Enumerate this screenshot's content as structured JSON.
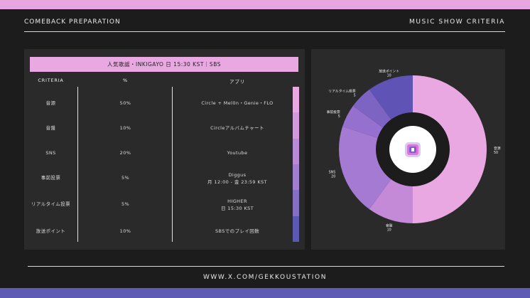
{
  "header": {
    "left": "COMEBACK PREPARATION",
    "right": "MUSIC SHOW CRITERIA"
  },
  "footer": {
    "url": "WWW.X.COM/GEKKOUSTATION"
  },
  "table": {
    "title": "人気歌謡・INKIGAYO 日 15:30 KST｜SBS",
    "columns": [
      "CRITERIA",
      "%",
      "アプリ"
    ],
    "rows": [
      {
        "criteria": "音源",
        "pct": "50%",
        "app": [
          "Circle + Mel0n・Genie・FLO"
        ]
      },
      {
        "criteria": "音盤",
        "pct": "10%",
        "app": [
          "Circleアルバムチャート"
        ]
      },
      {
        "criteria": "SNS",
        "pct": "20%",
        "app": [
          "Youtube"
        ]
      },
      {
        "criteria": "事前投票",
        "pct": "5%",
        "app": [
          "Diggus",
          "月 12:00 - 金 23:59 KST"
        ]
      },
      {
        "criteria": "リアルタイム投票",
        "pct": "5%",
        "app": [
          "HIGHER",
          "日 15:30 KST"
        ]
      },
      {
        "criteria": "放送ポイント",
        "pct": "10%",
        "app": [
          "SBSでのプレイ回数"
        ]
      }
    ]
  },
  "chart_data": {
    "type": "pie",
    "donut": true,
    "slices": [
      {
        "label": "音源",
        "value": 50,
        "color": "#e9a8e1"
      },
      {
        "label": "音盤",
        "value": 10,
        "color": "#c48ad7"
      },
      {
        "label": "SNS",
        "value": 20,
        "color": "#a57ad3"
      },
      {
        "label": "事前投票",
        "value": 5,
        "color": "#9670cf"
      },
      {
        "label": "リアルタイム投票",
        "value": 5,
        "color": "#7d63c2"
      },
      {
        "label": "放送ポイント",
        "value": 10,
        "color": "#5f54b6"
      }
    ]
  },
  "legend_colors": [
    "#e9a8e1",
    "#d29add",
    "#b98bd7",
    "#a07ed1",
    "#8470c5",
    "#5c59b4"
  ]
}
